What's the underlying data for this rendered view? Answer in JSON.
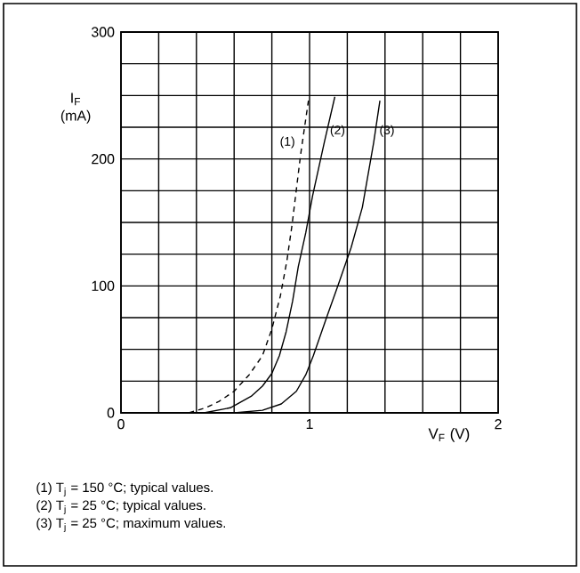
{
  "chart_data": {
    "type": "line",
    "xlabel": "V$_{F}$ (V)",
    "ylabel": "I$_{F}$ (mA)",
    "xlim": [
      0,
      2
    ],
    "ylim": [
      0,
      300
    ],
    "xticks": [
      0,
      {
        "value": 0.2,
        "label": null
      },
      {
        "value": 0.4,
        "label": null
      },
      {
        "value": 0.6,
        "label": null
      },
      {
        "value": 0.8,
        "label": null
      },
      1,
      {
        "value": 1.2,
        "label": null
      },
      {
        "value": 1.4,
        "label": null
      },
      {
        "value": 1.6,
        "label": null
      },
      {
        "value": 1.8,
        "label": null
      },
      2
    ],
    "yticks": [
      0,
      {
        "value": 25,
        "label": null
      },
      {
        "value": 50,
        "label": null
      },
      {
        "value": 75,
        "label": null
      },
      100,
      {
        "value": 125,
        "label": null
      },
      {
        "value": 150,
        "label": null
      },
      {
        "value": 175,
        "label": null
      },
      200,
      {
        "value": 225,
        "label": null
      },
      {
        "value": 250,
        "label": null
      },
      {
        "value": 275,
        "label": null
      },
      300
    ],
    "grid": true,
    "series": [
      {
        "name": "(1)",
        "color": "#000000",
        "line_style": "dashed",
        "x": [
          0.36,
          0.45,
          0.52,
          0.6,
          0.68,
          0.75,
          0.8,
          0.845,
          0.88,
          0.907,
          0.953,
          0.994
        ],
        "values": [
          0,
          4,
          9,
          17,
          30,
          45,
          66,
          92,
          120,
          148,
          204,
          246
        ]
      },
      {
        "name": "(2)",
        "color": "#000000",
        "line_style": "solid",
        "x": [
          0.44,
          0.58,
          0.69,
          0.75,
          0.8,
          0.84,
          0.876,
          0.91,
          0.94,
          0.98,
          1.016,
          1.078,
          1.134
        ],
        "values": [
          0,
          4,
          13,
          21,
          31,
          45,
          64,
          88,
          115,
          142,
          171,
          213,
          249
        ]
      },
      {
        "name": "(3)",
        "color": "#000000",
        "line_style": "solid",
        "x": [
          0.6,
          0.75,
          0.85,
          0.93,
          0.98,
          1.02,
          1.09,
          1.15,
          1.22,
          1.28,
          1.34,
          1.373
        ],
        "values": [
          0,
          2,
          7,
          17,
          30,
          45,
          75,
          100,
          130,
          162,
          213,
          246
        ]
      }
    ],
    "annotations": [
      "(1)   T$_{j}$ = 150 °C; typical values.",
      "(2)   T$_{j}$ = 25 °C; typical values.",
      "(3)   T$_{j}$ = 25 °C; maximum values."
    ]
  }
}
